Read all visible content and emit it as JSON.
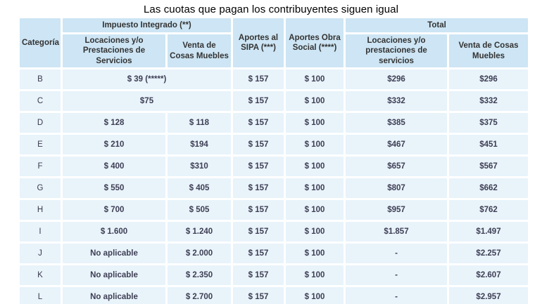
{
  "title": "Las cuotas que pagan los contribuyentes siguen igual",
  "colors": {
    "header_bg": "#cde5f4",
    "cell_bg": "#e8f3fa",
    "header_text": "#333333",
    "value_text": "#3e3e54",
    "gap": "#ffffff",
    "title_text": "#000000"
  },
  "chart_data": {
    "type": "table",
    "title": "Las cuotas que pagan los contribuyentes siguen igual",
    "header": {
      "categoria": "Categoría",
      "group_impuesto": "Impuesto Integrado (**)",
      "sub_impuesto_locaciones": "Locaciones y/o Prestaciones de Servicios",
      "sub_impuesto_venta": "Venta de Cosas Muebles",
      "aportes_sipa": "Aportes al SIPA (***)",
      "aportes_obra": "Aportes Obra Social (****)",
      "group_total": "Total",
      "sub_total_locaciones": "Locaciones y/o prestaciones de servicios",
      "sub_total_venta": "Venta de Cosas Muebles"
    },
    "rows": [
      {
        "categoria": "B",
        "impuesto_merged": true,
        "impuesto_locaciones": "$ 39 (*****)",
        "impuesto_venta": null,
        "aportes_sipa": "$ 157",
        "aportes_obra": "$ 100",
        "total_locaciones": "$296",
        "total_venta": "$296"
      },
      {
        "categoria": "C",
        "impuesto_merged": true,
        "impuesto_locaciones": "$75",
        "impuesto_venta": null,
        "aportes_sipa": "$ 157",
        "aportes_obra": "$ 100",
        "total_locaciones": "$332",
        "total_venta": "$332"
      },
      {
        "categoria": "D",
        "impuesto_merged": false,
        "impuesto_locaciones": "$ 128",
        "impuesto_venta": "$ 118",
        "aportes_sipa": "$ 157",
        "aportes_obra": "$ 100",
        "total_locaciones": "$385",
        "total_venta": "$375"
      },
      {
        "categoria": "E",
        "impuesto_merged": false,
        "impuesto_locaciones": "$ 210",
        "impuesto_venta": "$194",
        "aportes_sipa": "$ 157",
        "aportes_obra": "$ 100",
        "total_locaciones": "$467",
        "total_venta": "$451"
      },
      {
        "categoria": "F",
        "impuesto_merged": false,
        "impuesto_locaciones": "$ 400",
        "impuesto_venta": "$310",
        "aportes_sipa": "$ 157",
        "aportes_obra": "$ 100",
        "total_locaciones": "$657",
        "total_venta": "$567"
      },
      {
        "categoria": "G",
        "impuesto_merged": false,
        "impuesto_locaciones": "$ 550",
        "impuesto_venta": "$ 405",
        "aportes_sipa": "$ 157",
        "aportes_obra": "$ 100",
        "total_locaciones": "$807",
        "total_venta": "$662"
      },
      {
        "categoria": "H",
        "impuesto_merged": false,
        "impuesto_locaciones": "$ 700",
        "impuesto_venta": "$ 505",
        "aportes_sipa": "$ 157",
        "aportes_obra": "$ 100",
        "total_locaciones": "$957",
        "total_venta": "$762"
      },
      {
        "categoria": "I",
        "impuesto_merged": false,
        "impuesto_locaciones": "$ 1.600",
        "impuesto_venta": "$ 1.240",
        "aportes_sipa": "$ 157",
        "aportes_obra": "$ 100",
        "total_locaciones": "$1.857",
        "total_venta": "$1.497"
      },
      {
        "categoria": "J",
        "impuesto_merged": false,
        "impuesto_locaciones": "No aplicable",
        "impuesto_venta": "$ 2.000",
        "aportes_sipa": "$ 157",
        "aportes_obra": "$ 100",
        "total_locaciones": "-",
        "total_venta": "$2.257"
      },
      {
        "categoria": "K",
        "impuesto_merged": false,
        "impuesto_locaciones": "No aplicable",
        "impuesto_venta": "$ 2.350",
        "aportes_sipa": "$ 157",
        "aportes_obra": "$ 100",
        "total_locaciones": "-",
        "total_venta": "$2.607"
      },
      {
        "categoria": "L",
        "impuesto_merged": false,
        "impuesto_locaciones": "No aplicable",
        "impuesto_venta": "$ 2.700",
        "aportes_sipa": "$ 157",
        "aportes_obra": "$ 100",
        "total_locaciones": "-",
        "total_venta": "$2.957"
      }
    ]
  }
}
